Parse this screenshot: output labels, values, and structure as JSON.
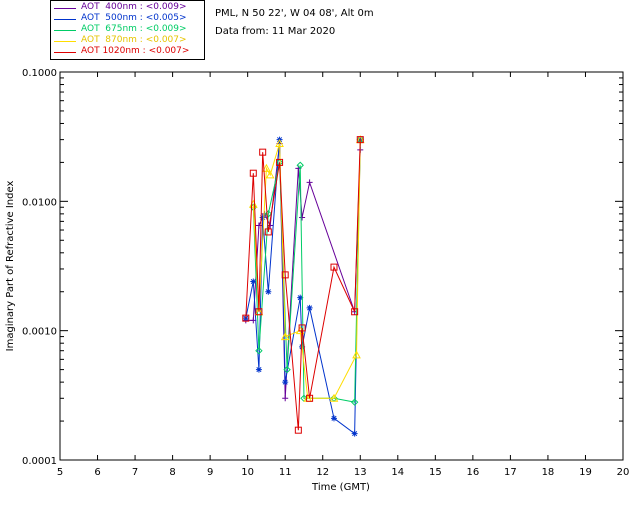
{
  "header": {
    "location": "PML, N 50 22', W 04 08', Alt 0m",
    "data_from": "Data from: 11 Mar 2020"
  },
  "legend": [
    {
      "label": "AOT  400nm : <0.009>",
      "color": "#660099"
    },
    {
      "label": "AOT  500nm : <0.005>",
      "color": "#0033cc"
    },
    {
      "label": "AOT  675nm : <0.009>",
      "color": "#00cc66"
    },
    {
      "label": "AOT  870nm : <0.007>",
      "color": "#ffdd00"
    },
    {
      "label": "AOT 1020nm : <0.007>",
      "color": "#dd0000"
    }
  ],
  "chart_data": {
    "type": "line",
    "xlabel": "Time (GMT)",
    "ylabel": "Imaginary Part of Refractive Index",
    "xlim": [
      5,
      20
    ],
    "ylim": [
      0.0001,
      0.1
    ],
    "yscale": "log",
    "x_ticks": [
      "5",
      "6",
      "7",
      "8",
      "9",
      "10",
      "11",
      "12",
      "13",
      "14",
      "15",
      "16",
      "17",
      "18",
      "19",
      "20"
    ],
    "y_ticks": [
      "0.0001",
      "0.0010",
      "0.0100",
      "0.1000"
    ],
    "series": [
      {
        "name": "AOT  400nm",
        "color": "#660099",
        "marker": "+",
        "x": [
          9.95,
          10.15,
          10.3,
          10.45,
          10.6,
          10.85,
          11.0,
          11.35,
          11.45,
          11.65,
          12.85,
          13.0
        ],
        "y": [
          0.0012,
          0.0012,
          0.0065,
          0.008,
          0.0065,
          0.028,
          0.0003,
          0.018,
          0.0075,
          0.014,
          0.0014,
          0.025
        ]
      },
      {
        "name": "AOT  500nm",
        "color": "#0033cc",
        "marker": "*",
        "x": [
          9.95,
          10.15,
          10.3,
          10.4,
          10.55,
          10.85,
          11.0,
          11.4,
          11.45,
          11.65,
          12.3,
          12.85,
          13.0
        ],
        "y": [
          0.00125,
          0.0024,
          0.0005,
          0.0075,
          0.002,
          0.03,
          0.0004,
          0.0018,
          0.00075,
          0.0015,
          0.00021,
          0.00016,
          0.03
        ]
      },
      {
        "name": "AOT  675nm",
        "color": "#00cc66",
        "marker": "diamond",
        "x": [
          10.15,
          10.3,
          10.55,
          10.85,
          11.05,
          11.4,
          11.5,
          12.3,
          12.85,
          13.0
        ],
        "y": [
          0.009,
          0.0007,
          0.008,
          0.02,
          0.0005,
          0.019,
          0.0003,
          0.0003,
          0.00028,
          0.03
        ]
      },
      {
        "name": "AOT  870nm",
        "color": "#ffdd00",
        "marker": "triangle",
        "x": [
          10.15,
          10.3,
          10.5,
          10.6,
          10.85,
          11.0,
          11.4,
          11.6,
          12.3,
          12.9,
          13.0
        ],
        "y": [
          0.0095,
          0.0014,
          0.018,
          0.016,
          0.028,
          0.0009,
          0.001,
          0.0003,
          0.0003,
          0.00065,
          0.03
        ]
      },
      {
        "name": "AOT 1020nm",
        "color": "#dd0000",
        "marker": "square",
        "x": [
          9.95,
          10.15,
          10.3,
          10.4,
          10.55,
          10.85,
          11.0,
          11.35,
          11.45,
          11.65,
          12.3,
          12.85,
          13.0
        ],
        "y": [
          0.00125,
          0.0165,
          0.0014,
          0.024,
          0.0058,
          0.02,
          0.0027,
          0.00017,
          0.00105,
          0.0003,
          0.0031,
          0.0014,
          0.03
        ]
      }
    ]
  }
}
